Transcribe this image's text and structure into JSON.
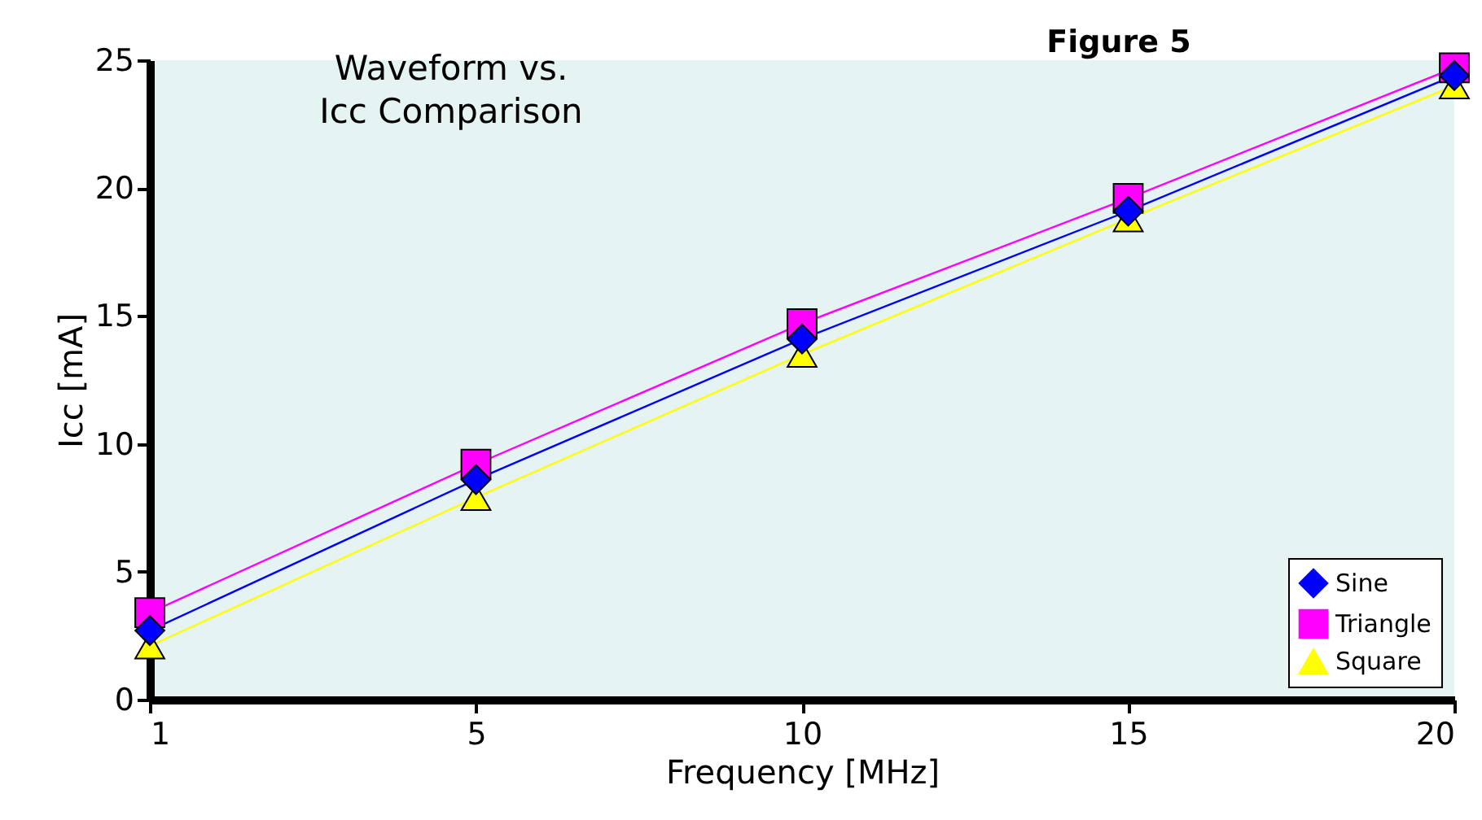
{
  "chart_data": {
    "type": "line",
    "title": "Waveform vs.\nIcc Comparison",
    "xlabel": "Frequency [MHz]",
    "ylabel": "Icc [mA]",
    "annotations": [
      "Figure 5"
    ],
    "categories": [
      "1",
      "5",
      "10",
      "15",
      "20"
    ],
    "series": [
      {
        "name": "Sine",
        "color": "#0000ff",
        "marker": "diamond",
        "values": [
          2.7,
          8.6,
          14.1,
          19.1,
          24.4
        ]
      },
      {
        "name": "Triangle",
        "color": "#ff00ff",
        "marker": "square",
        "values": [
          3.4,
          9.2,
          14.7,
          19.6,
          24.7
        ]
      },
      {
        "name": "Square",
        "color": "#ffff00",
        "marker": "triangle",
        "values": [
          2.1,
          7.9,
          13.5,
          18.8,
          24.0
        ]
      }
    ],
    "ylim": [
      0,
      25
    ],
    "yticks": [
      0,
      5,
      10,
      15,
      20,
      25
    ],
    "legend": "bottom right",
    "grid": false,
    "line_style": "solid"
  }
}
